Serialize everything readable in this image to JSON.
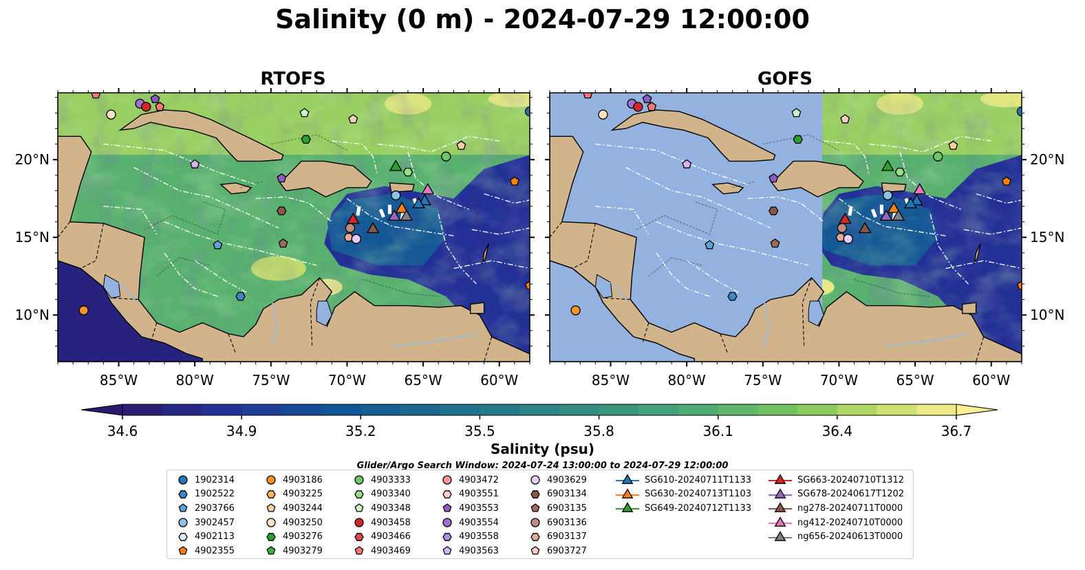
{
  "title": "Salinity (0 m) - 2024-07-29 12:00:00",
  "panels": [
    {
      "id": "rtofs",
      "title": "RTOFS"
    },
    {
      "id": "gofs",
      "title": "GOFS"
    }
  ],
  "map": {
    "lon_range": [
      -89,
      -58
    ],
    "lat_range": [
      7,
      24.3
    ],
    "lon_ticks": [
      -85,
      -80,
      -75,
      -70,
      -65,
      -60
    ],
    "lon_tick_labels": [
      "85°W",
      "80°W",
      "75°W",
      "70°W",
      "65°W",
      "60°W"
    ],
    "lat_ticks": [
      10,
      15,
      20
    ],
    "lat_tick_labels": [
      "10°N",
      "15°N",
      "20°N"
    ],
    "land_color": "#d2b48c",
    "nodata_color": "#94b2e0"
  },
  "colorbar": {
    "label": "Salinity (psu)",
    "min": 34.6,
    "max": 36.7,
    "step": 0.1,
    "ticks": [
      34.6,
      34.9,
      35.2,
      35.5,
      35.8,
      36.1,
      36.4,
      36.7
    ],
    "tick_labels": [
      "34.6",
      "34.9",
      "35.2",
      "35.5",
      "35.8",
      "36.1",
      "36.4",
      "36.7"
    ],
    "colormap": "haline",
    "extend": "both"
  },
  "legend": {
    "title": "Glider/Argo Search Window: 2024-07-24 13:00:00 to 2024-07-29 12:00:00",
    "columns": [
      [
        {
          "label": "1902314",
          "marker": "circle",
          "color": "#1f77b4"
        },
        {
          "label": "1902522",
          "marker": "hexagon",
          "color": "#3a86c8"
        },
        {
          "label": "2903766",
          "marker": "pentagon",
          "color": "#5aa4d6"
        },
        {
          "label": "3902457",
          "marker": "circle",
          "color": "#8ec1e8"
        },
        {
          "label": "4902113",
          "marker": "hexagon",
          "color": "#d9ecfa"
        },
        {
          "label": "4902355",
          "marker": "pentagon",
          "color": "#ff7f0e"
        }
      ],
      [
        {
          "label": "4903186",
          "marker": "circle",
          "color": "#f5922a"
        },
        {
          "label": "4903225",
          "marker": "hexagon",
          "color": "#fbb36a"
        },
        {
          "label": "4903244",
          "marker": "pentagon",
          "color": "#fcd09e"
        },
        {
          "label": "4903250",
          "marker": "circle",
          "color": "#fde2c4"
        },
        {
          "label": "4903276",
          "marker": "hexagon",
          "color": "#2ca02c"
        },
        {
          "label": "4903279",
          "marker": "pentagon",
          "color": "#3eb13e"
        }
      ],
      [
        {
          "label": "4903333",
          "marker": "circle",
          "color": "#6cc66c"
        },
        {
          "label": "4903340",
          "marker": "hexagon",
          "color": "#98df8a"
        },
        {
          "label": "4903348",
          "marker": "pentagon",
          "color": "#ccf2c2"
        },
        {
          "label": "4903458",
          "marker": "circle",
          "color": "#d62728"
        },
        {
          "label": "4903466",
          "marker": "hexagon",
          "color": "#e04a4a"
        },
        {
          "label": "4903469",
          "marker": "pentagon",
          "color": "#f07a7a"
        }
      ],
      [
        {
          "label": "4903472",
          "marker": "circle",
          "color": "#f49a9a"
        },
        {
          "label": "4903551",
          "marker": "hexagon",
          "color": "#fcd0d0"
        },
        {
          "label": "4903553",
          "marker": "pentagon",
          "color": "#8c5bbf"
        },
        {
          "label": "4903554",
          "marker": "circle",
          "color": "#9e6fd0"
        },
        {
          "label": "4903558",
          "marker": "hexagon",
          "color": "#b08fe0"
        },
        {
          "label": "4903563",
          "marker": "pentagon",
          "color": "#d2b6f0"
        }
      ],
      [
        {
          "label": "4903629",
          "marker": "circle",
          "color": "#e6cdf7"
        },
        {
          "label": "6903134",
          "marker": "hexagon",
          "color": "#8c564b"
        },
        {
          "label": "6903135",
          "marker": "pentagon",
          "color": "#9e6a5e"
        },
        {
          "label": "6903136",
          "marker": "circle",
          "color": "#c08a7c"
        },
        {
          "label": "6903137",
          "marker": "hexagon",
          "color": "#e0a99a"
        },
        {
          "label": "6903727",
          "marker": "pentagon",
          "color": "#f7cdbf"
        }
      ],
      [
        {
          "label": "SG610-20240711T1133",
          "marker": "triangle-line",
          "color": "#1f77b4"
        },
        {
          "label": "SG630-20240713T1103",
          "marker": "triangle-line",
          "color": "#ff7f0e"
        },
        {
          "label": "SG649-20240712T1133",
          "marker": "triangle-line",
          "color": "#2ca02c"
        }
      ],
      [
        {
          "label": "SG663-20240710T1312",
          "marker": "triangle-line",
          "color": "#d62728"
        },
        {
          "label": "SG678-20240617T1202",
          "marker": "triangle-line",
          "color": "#9467bd"
        },
        {
          "label": "ng278-20240711T0000",
          "marker": "triangle-line",
          "color": "#8c564b"
        },
        {
          "label": "ng412-20240710T0000",
          "marker": "triangle-line",
          "color": "#e377c2"
        },
        {
          "label": "ng656-20240613T0000",
          "marker": "triangle-line",
          "color": "#7f7f7f"
        }
      ]
    ]
  },
  "stations": [
    {
      "id": "4903469a",
      "lon": -86.5,
      "lat": 24.2,
      "marker": "pentagon",
      "color": "#f07a7a"
    },
    {
      "id": "4903554a",
      "lon": -83.6,
      "lat": 23.6,
      "marker": "circle",
      "color": "#9e6fd0"
    },
    {
      "id": "4903458a",
      "lon": -83.2,
      "lat": 23.4,
      "marker": "circle",
      "color": "#d62728"
    },
    {
      "id": "4903553a",
      "lon": -82.6,
      "lat": 23.9,
      "marker": "pentagon",
      "color": "#8c5bbf"
    },
    {
      "id": "4903469b",
      "lon": -82.3,
      "lat": 23.4,
      "marker": "pentagon",
      "color": "#f07a7a"
    },
    {
      "id": "4903250a",
      "lon": -85.5,
      "lat": 22.9,
      "marker": "circle",
      "color": "#fde2c4"
    },
    {
      "id": "4903348a",
      "lon": -72.8,
      "lat": 23.0,
      "marker": "pentagon",
      "color": "#ccf2c2"
    },
    {
      "id": "4903276a",
      "lon": -72.7,
      "lat": 21.3,
      "marker": "hexagon",
      "color": "#2ca02c"
    },
    {
      "id": "6903727a",
      "lon": -69.6,
      "lat": 22.6,
      "marker": "pentagon",
      "color": "#f7cdbf"
    },
    {
      "id": "4903244a",
      "lon": -62.5,
      "lat": 20.9,
      "marker": "pentagon",
      "color": "#fcd09e"
    },
    {
      "id": "4903333a",
      "lon": -63.5,
      "lat": 20.2,
      "marker": "circle",
      "color": "#6cc66c"
    },
    {
      "id": "4903340a",
      "lon": -66.0,
      "lat": 19.2,
      "marker": "hexagon",
      "color": "#98df8a"
    },
    {
      "id": "4902355a",
      "lon": -59.0,
      "lat": 18.6,
      "marker": "pentagon",
      "color": "#ff7f0e"
    },
    {
      "id": "1902314a",
      "lon": -58.0,
      "lat": 23.1,
      "marker": "circle",
      "color": "#1f77b4"
    },
    {
      "id": "4903563a",
      "lon": -80.0,
      "lat": 19.7,
      "marker": "pentagon",
      "color": "#d2b6f0"
    },
    {
      "id": "4903553b",
      "lon": -74.3,
      "lat": 18.8,
      "marker": "pentagon",
      "color": "#8c5bbf"
    },
    {
      "id": "3902457a",
      "lon": -66.8,
      "lat": 17.7,
      "marker": "circle",
      "color": "#8ec1e8"
    },
    {
      "id": "6903134a",
      "lon": -74.3,
      "lat": 16.7,
      "marker": "hexagon",
      "color": "#8c564b"
    },
    {
      "id": "6903136a",
      "lon": -69.8,
      "lat": 15.6,
      "marker": "circle",
      "color": "#c08a7c"
    },
    {
      "id": "6903137a",
      "lon": -69.9,
      "lat": 15.0,
      "marker": "hexagon",
      "color": "#e0a99a"
    },
    {
      "id": "4903629a",
      "lon": -69.4,
      "lat": 14.9,
      "marker": "circle",
      "color": "#e6cdf7"
    },
    {
      "id": "6903135a",
      "lon": -74.2,
      "lat": 14.6,
      "marker": "pentagon",
      "color": "#9e6a5e"
    },
    {
      "id": "2903766a",
      "lon": -78.5,
      "lat": 14.5,
      "marker": "pentagon",
      "color": "#5aa4d6"
    },
    {
      "id": "1902522a",
      "lon": -77.0,
      "lat": 11.2,
      "marker": "hexagon",
      "color": "#3a86c8"
    },
    {
      "id": "4903186a",
      "lon": -87.3,
      "lat": 10.3,
      "marker": "circle",
      "color": "#f5922a"
    },
    {
      "id": "4902355b",
      "lon": -58.0,
      "lat": 11.9,
      "marker": "pentagon",
      "color": "#ff7f0e"
    }
  ],
  "gliders": [
    {
      "id": "SG649",
      "lon": -66.8,
      "lat": 19.6,
      "color": "#2ca02c"
    },
    {
      "id": "ng412",
      "lon": -64.7,
      "lat": 18.1,
      "color": "#e377c2"
    },
    {
      "id": "SG610a",
      "lon": -64.9,
      "lat": 17.4,
      "color": "#1f77b4"
    },
    {
      "id": "SG630",
      "lon": -66.4,
      "lat": 16.9,
      "color": "#ff7f0e"
    },
    {
      "id": "SG610b",
      "lon": -65.3,
      "lat": 17.2,
      "color": "#1f77b4"
    },
    {
      "id": "SG678",
      "lon": -66.9,
      "lat": 16.4,
      "color": "#9467bd"
    },
    {
      "id": "ng656",
      "lon": -66.1,
      "lat": 16.4,
      "color": "#7f7f7f"
    },
    {
      "id": "SG663",
      "lon": -69.6,
      "lat": 16.2,
      "color": "#d62728"
    },
    {
      "id": "ng278",
      "lon": -68.3,
      "lat": 15.6,
      "color": "#8c564b"
    }
  ]
}
